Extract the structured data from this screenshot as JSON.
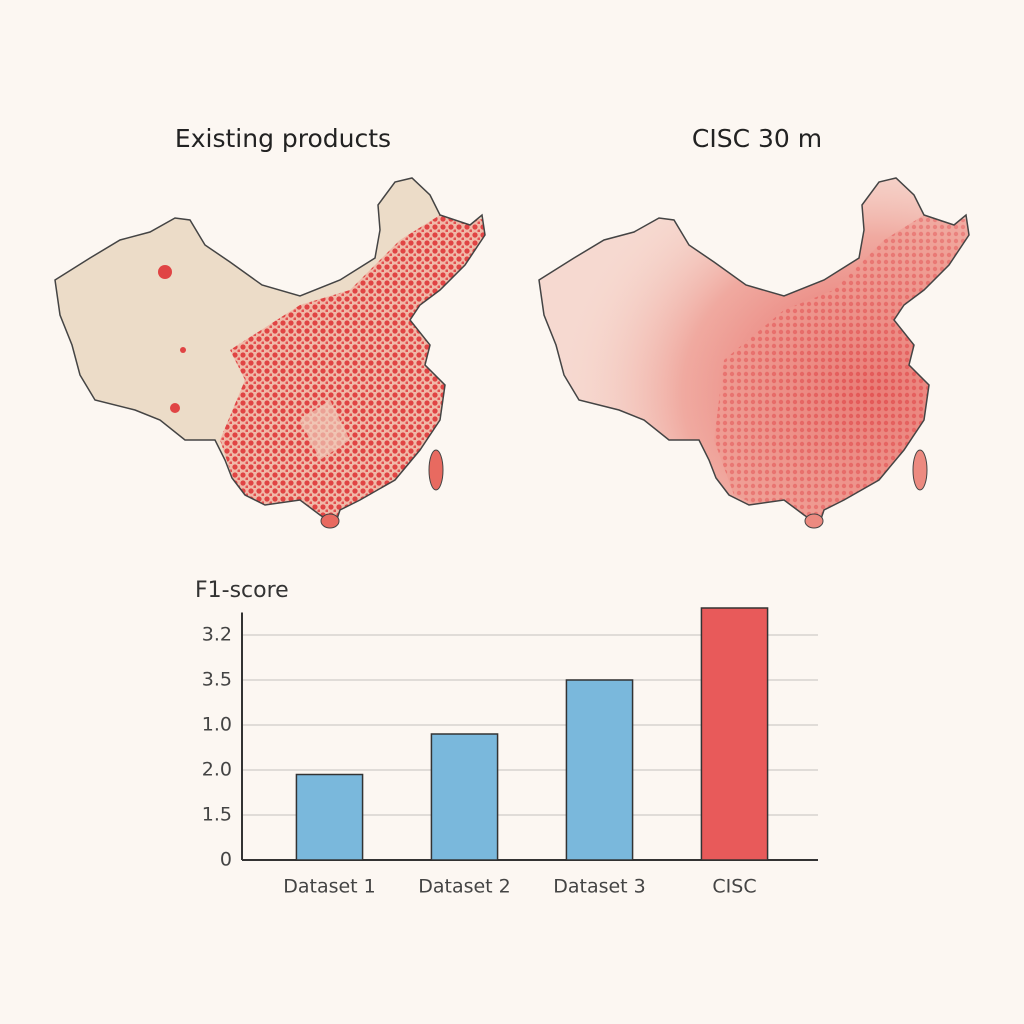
{
  "map_titles": [
    "Existing products",
    "CISC 30 m"
  ],
  "chart_data": {
    "type": "bar",
    "y_label": "F1-score",
    "categories": [
      "Dataset 1",
      "Dataset 2",
      "Dataset 3",
      "CISC"
    ],
    "values": [
      1.9,
      2.8,
      4.0,
      5.6
    ],
    "colors": [
      "#7ab8dc",
      "#7ab8dc",
      "#7ab8dc",
      "#e85a5a"
    ],
    "ylim": [
      0,
      5.5
    ],
    "yticks": [
      0,
      {
        "value": 1,
        "label": "1.5"
      },
      {
        "value": 2,
        "label": "2.0"
      },
      {
        "value": 3,
        "label": "1.0"
      },
      {
        "value": 4,
        "label": "3.5"
      },
      {
        "value": 5,
        "label": "3.2"
      }
    ],
    "grid": true
  }
}
